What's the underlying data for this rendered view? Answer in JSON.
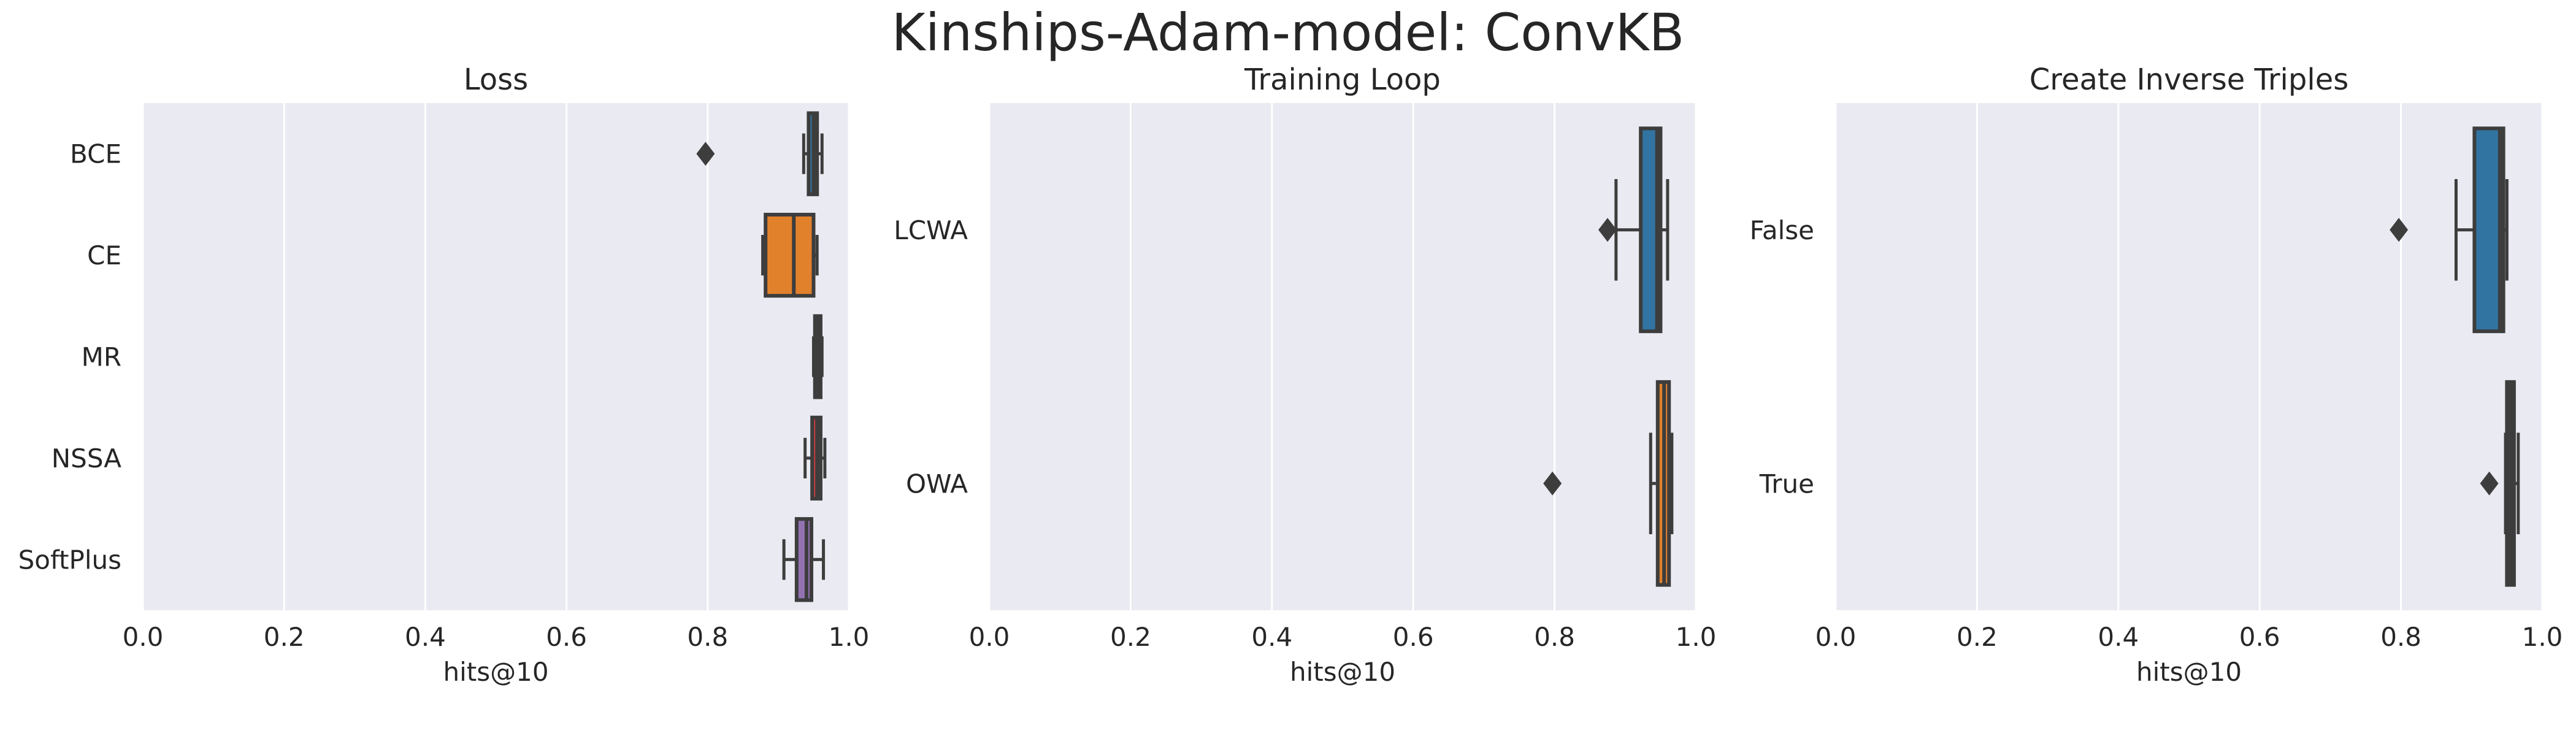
{
  "figure": {
    "title": "Kinships-Adam-model: ConvKB"
  },
  "style": {
    "background": "#eaeaf2",
    "grid": "#ffffff",
    "edge": "#3d3d3d",
    "palette": [
      "#3274a1",
      "#e1812c",
      "#3a923a",
      "#c03d3e",
      "#9372b2"
    ]
  },
  "chart_data": [
    {
      "type": "box",
      "orientation": "horizontal",
      "title": "Loss",
      "xlabel": "hits@10",
      "ylabel": "",
      "xlim": [
        0.0,
        1.0
      ],
      "xticks": [
        "0.0",
        "0.2",
        "0.4",
        "0.6",
        "0.8",
        "1.0"
      ],
      "grid": true,
      "categories": [
        "BCE",
        "CE",
        "MR",
        "NSSA",
        "SoftPlus"
      ],
      "colors": [
        "#3274a1",
        "#e1812c",
        "#3a923a",
        "#c03d3e",
        "#9372b2"
      ],
      "boxes": [
        {
          "whisker_low": 0.936,
          "q1": 0.943,
          "median": 0.95,
          "q3": 0.955,
          "whisker_high": 0.962,
          "outliers": [
            0.797
          ]
        },
        {
          "whisker_low": 0.878,
          "q1": 0.882,
          "median": 0.922,
          "q3": 0.95,
          "whisker_high": 0.955,
          "outliers": []
        },
        {
          "whisker_low": 0.95,
          "q1": 0.952,
          "median": 0.955,
          "q3": 0.96,
          "whisker_high": 0.962,
          "outliers": []
        },
        {
          "whisker_low": 0.938,
          "q1": 0.948,
          "median": 0.955,
          "q3": 0.96,
          "whisker_high": 0.966,
          "outliers": []
        },
        {
          "whisker_low": 0.908,
          "q1": 0.926,
          "median": 0.94,
          "q3": 0.947,
          "whisker_high": 0.964,
          "outliers": []
        }
      ]
    },
    {
      "type": "box",
      "orientation": "horizontal",
      "title": "Training Loop",
      "xlabel": "hits@10",
      "ylabel": "",
      "xlim": [
        0.0,
        1.0
      ],
      "xticks": [
        "0.0",
        "0.2",
        "0.4",
        "0.6",
        "0.8",
        "1.0"
      ],
      "grid": true,
      "categories": [
        "LCWA",
        "OWA"
      ],
      "colors": [
        "#3274a1",
        "#e1812c"
      ],
      "boxes": [
        {
          "whisker_low": 0.887,
          "q1": 0.922,
          "median": 0.945,
          "q3": 0.95,
          "whisker_high": 0.96,
          "outliers": [
            0.875
          ]
        },
        {
          "whisker_low": 0.936,
          "q1": 0.946,
          "median": 0.955,
          "q3": 0.962,
          "whisker_high": 0.966,
          "outliers": [
            0.797
          ]
        }
      ]
    },
    {
      "type": "box",
      "orientation": "horizontal",
      "title": "Create Inverse Triples",
      "xlabel": "hits@10",
      "ylabel": "",
      "xlim": [
        0.0,
        1.0
      ],
      "xticks": [
        "0.0",
        "0.2",
        "0.4",
        "0.6",
        "0.8",
        "1.0"
      ],
      "grid": true,
      "categories": [
        "False",
        "True"
      ],
      "colors": [
        "#3274a1",
        "#e1812c"
      ],
      "boxes": [
        {
          "whisker_low": 0.878,
          "q1": 0.904,
          "median": 0.94,
          "q3": 0.945,
          "whisker_high": 0.95,
          "outliers": [
            0.797
          ]
        },
        {
          "whisker_low": 0.948,
          "q1": 0.95,
          "median": 0.955,
          "q3": 0.96,
          "whisker_high": 0.966,
          "outliers": [
            0.925
          ]
        }
      ]
    }
  ]
}
